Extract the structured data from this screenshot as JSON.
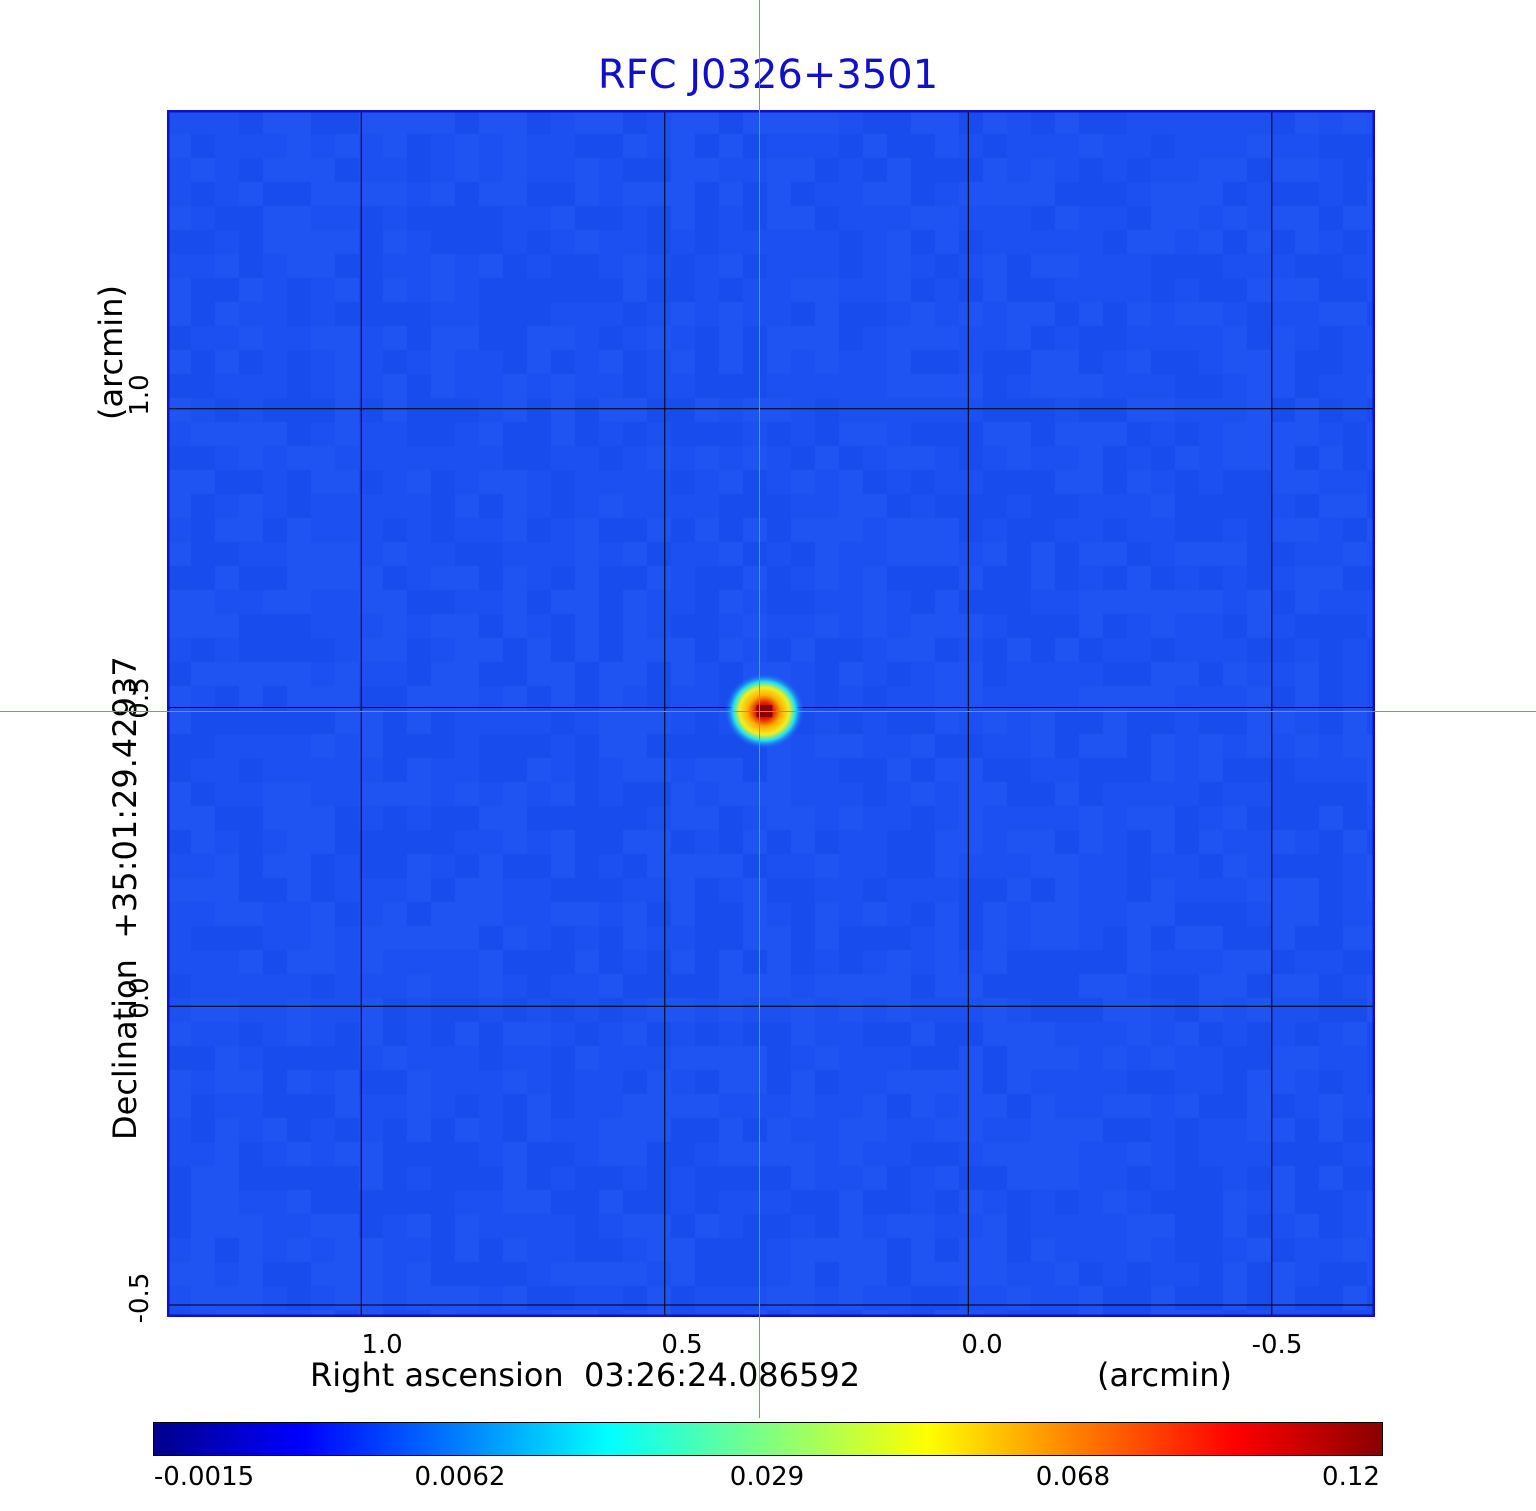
{
  "chart_data": {
    "type": "heatmap",
    "title": "RFC J0326+3501",
    "xlabel": "Right ascension  03:26:24.086592",
    "x_unit": "(arcmin)",
    "ylabel": "Declination  +35:01:29.42937",
    "y_unit": "(arcmin)",
    "xlim": [
      1.32,
      -0.67
    ],
    "ylim": [
      -0.52,
      1.5
    ],
    "x_ticks": [
      1.0,
      0.5,
      0.0,
      -0.5
    ],
    "x_tick_labels": [
      "1.0",
      "0.5",
      "0.0",
      "-0.5"
    ],
    "y_ticks": [
      -0.5,
      0.0,
      0.5,
      1.0
    ],
    "y_tick_labels": [
      "-0.5",
      "0.0",
      "0.5",
      "1.0"
    ],
    "grid": true,
    "crosshair": {
      "x": 0.344,
      "y": 0.494,
      "color": "#22dd22"
    },
    "peak": {
      "x": 0.336,
      "y": 0.494,
      "value": 0.12
    },
    "colormap": "jet",
    "background_value": 0.0,
    "colorbar": {
      "tick_labels": [
        "-0.0015",
        "0.0062",
        "0.029",
        "0.068",
        "0.12"
      ],
      "tick_values": [
        -0.0015,
        0.0062,
        0.029,
        0.068,
        0.12
      ]
    }
  }
}
